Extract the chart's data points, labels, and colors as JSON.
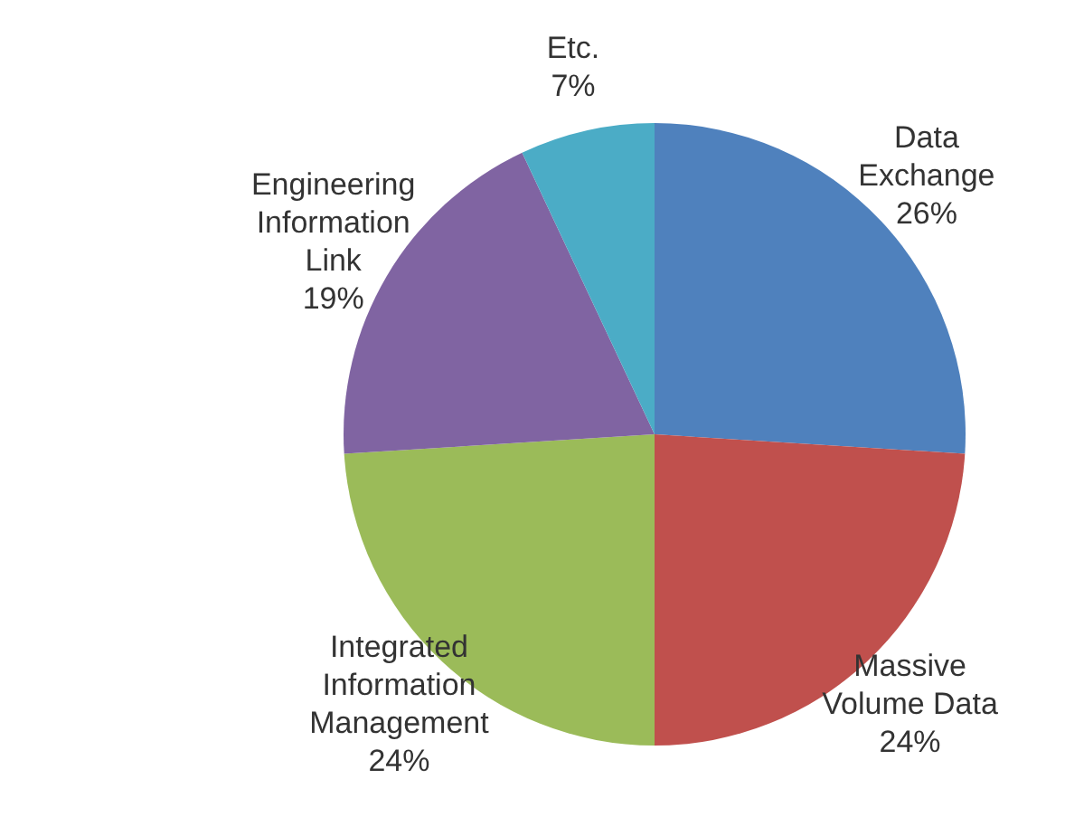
{
  "chart_data": {
    "type": "pie",
    "categories": [
      "Data Exchange",
      "Massive Volume Data",
      "Integrated Information Management",
      "Engineering Information Link",
      "Etc."
    ],
    "values": [
      26,
      24,
      24,
      19,
      7
    ],
    "value_labels": [
      "26%",
      "24%",
      "24%",
      "19%",
      "7%"
    ],
    "colors": [
      "#4f81bd",
      "#c0504d",
      "#9bbb59",
      "#8064a2",
      "#4bacc6"
    ]
  }
}
